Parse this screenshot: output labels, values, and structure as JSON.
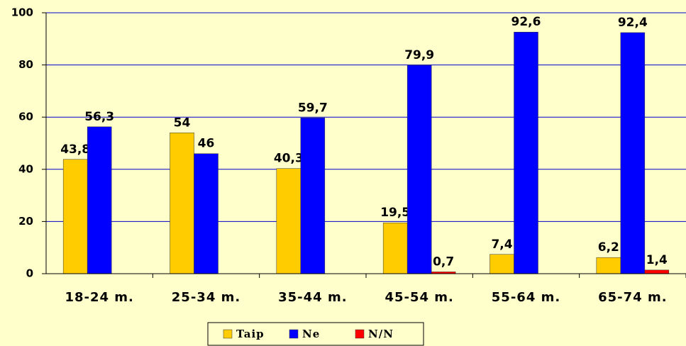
{
  "chart_data": {
    "type": "bar",
    "categories": [
      "18-24 m.",
      "25-34 m.",
      "35-44 m.",
      "45-54 m.",
      "55-64 m.",
      "65-74 m."
    ],
    "series": [
      {
        "name": "Taip",
        "color": "#ffcc00",
        "values": [
          43.8,
          54,
          40.3,
          19.5,
          7.4,
          6.2
        ],
        "value_labels": [
          "43,8",
          "54",
          "40,3",
          "19,5",
          "7,4",
          "6,2"
        ]
      },
      {
        "name": "Ne",
        "color": "#0000ff",
        "values": [
          56.3,
          46,
          59.7,
          79.9,
          92.6,
          92.4
        ],
        "value_labels": [
          "56,3",
          "46",
          "59,7",
          "79,9",
          "92,6",
          "92,4"
        ]
      },
      {
        "name": "N/N",
        "color": "#ff0000",
        "values": [
          null,
          null,
          null,
          0.7,
          null,
          1.4
        ],
        "value_labels": [
          null,
          null,
          null,
          "0,7",
          null,
          "1,4"
        ]
      }
    ],
    "ylim": [
      0,
      100
    ],
    "yticks": [
      0,
      20,
      40,
      60,
      80,
      100
    ],
    "grid": true,
    "legend": "bottom"
  }
}
